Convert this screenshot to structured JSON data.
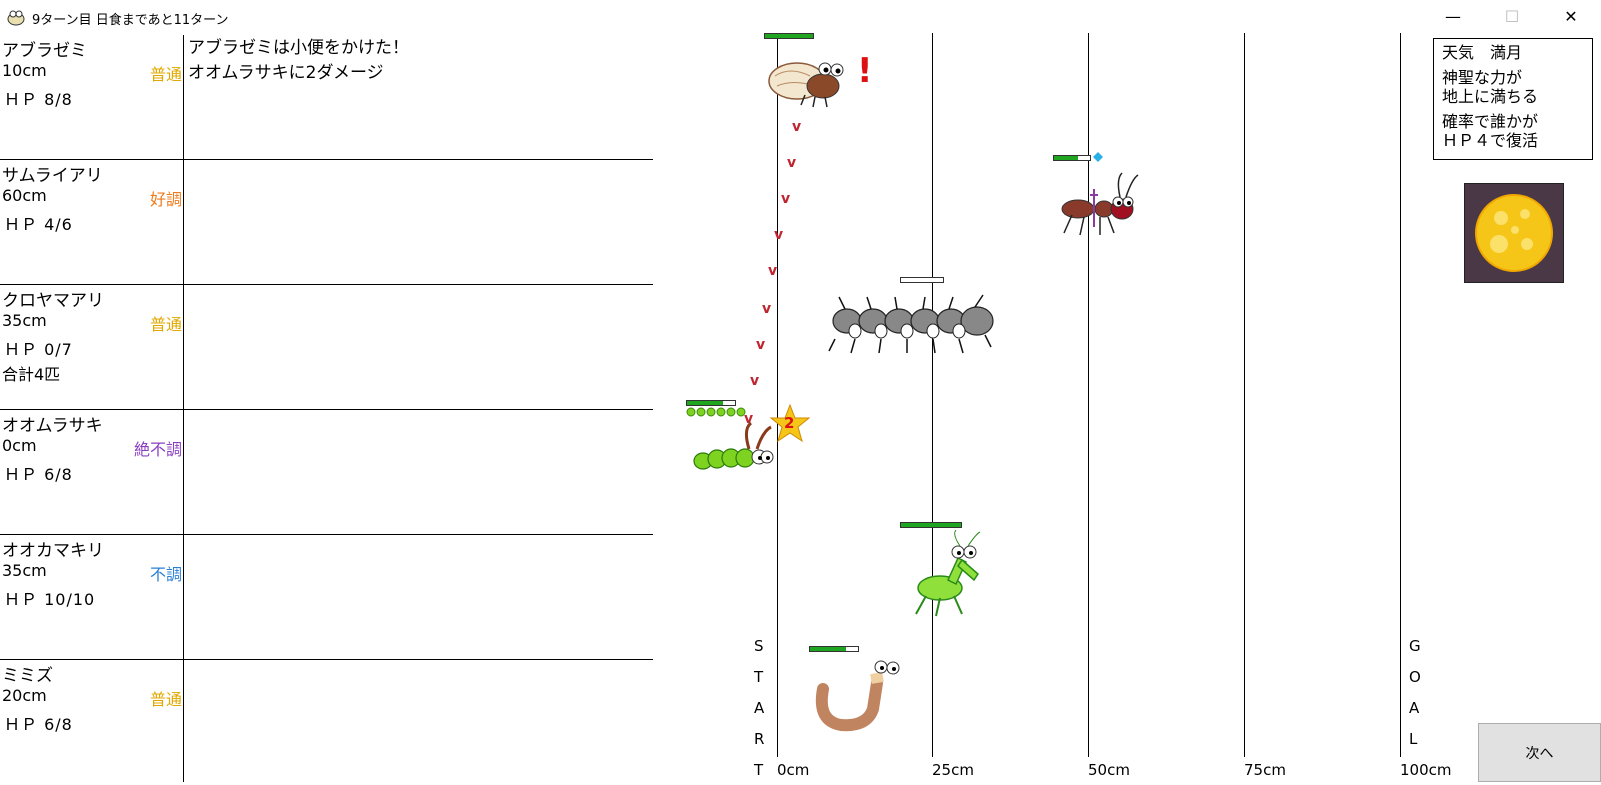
{
  "window": {
    "title": "9ターン目 日食まであと11ターン",
    "minimize_glyph": "—",
    "maximize_glyph": "☐",
    "close_glyph": "✕"
  },
  "insects": [
    {
      "name": "アブラゼミ",
      "distance": "10cm",
      "condition": "普通",
      "condition_color": "#e0a800",
      "hp": "ＨＰ 8/8",
      "hp_value": 8,
      "hp_max": 8,
      "extra": "",
      "log": [
        "アブラゼミは小便をかけた！",
        "オオムラサキに2ダメージ"
      ]
    },
    {
      "name": "サムライアリ",
      "distance": "60cm",
      "condition": "好調",
      "condition_color": "#f07a1a",
      "hp": "ＨＰ 4/6",
      "hp_value": 4,
      "hp_max": 6,
      "extra": "",
      "log": []
    },
    {
      "name": "クロヤマアリ",
      "distance": "35cm",
      "condition": "普通",
      "condition_color": "#e0a800",
      "hp": "ＨＰ 0/7",
      "hp_value": 0,
      "hp_max": 7,
      "extra": "合計4匹",
      "log": []
    },
    {
      "name": "オオムラサキ",
      "distance": "0cm",
      "condition": "絶不調",
      "condition_color": "#8a3fc0",
      "hp": "ＨＰ 6/8",
      "hp_value": 6,
      "hp_max": 8,
      "extra": "",
      "log": []
    },
    {
      "name": "オオカマキリ",
      "distance": "35cm",
      "condition": "不調",
      "condition_color": "#2a7fd4",
      "hp": "ＨＰ 10/10",
      "hp_value": 10,
      "hp_max": 10,
      "extra": "",
      "log": []
    },
    {
      "name": "ミミズ",
      "distance": "20cm",
      "condition": "普通",
      "condition_color": "#e0a800",
      "hp": "ＨＰ 6/8",
      "hp_value": 6,
      "hp_max": 8,
      "extra": "",
      "log": []
    }
  ],
  "track": {
    "ticks": [
      "0cm",
      "25cm",
      "50cm",
      "75cm",
      "100cm"
    ],
    "start_letters": [
      "S",
      "T",
      "A",
      "R",
      "T"
    ],
    "goal_letters": [
      "G",
      "O",
      "A",
      "L"
    ]
  },
  "effects": {
    "exclaim": "!",
    "damage_number": "2",
    "arrow_glyph": "v"
  },
  "weather": {
    "line1": "天気　満月",
    "line2": "神聖な力が\n地上に満ちる",
    "line3": "確率で誰かが\nＨＰ４で復活"
  },
  "next_button": "次へ",
  "colors": {
    "hp_bar": "#1fa51f",
    "arrows": "#c0262f",
    "moon": "#f5c518",
    "moon_bg": "#4a3846"
  }
}
